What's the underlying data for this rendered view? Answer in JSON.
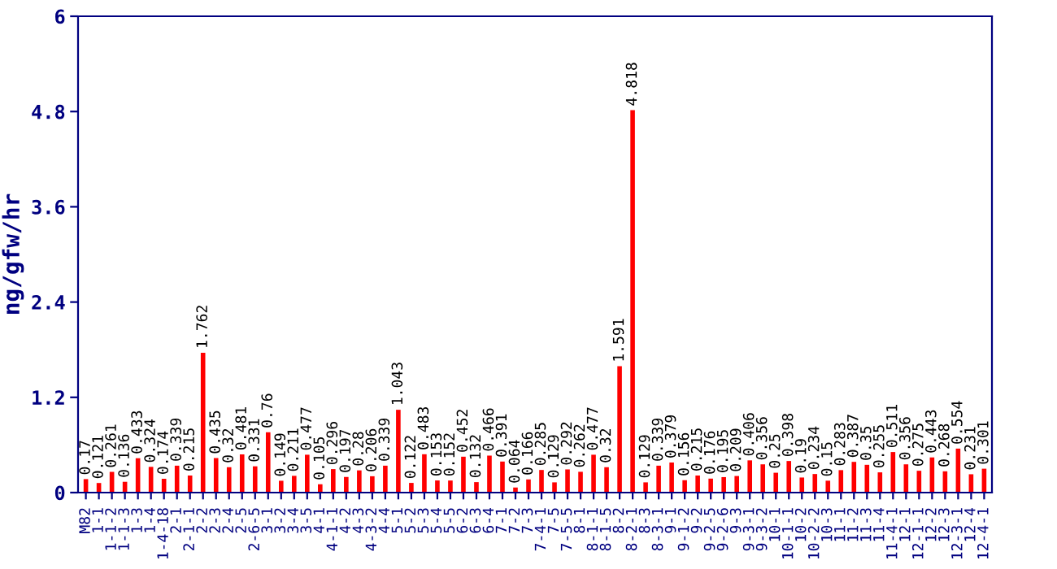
{
  "chart_data": {
    "type": "bar",
    "ylabel": "ng/gfw/hr",
    "categories": [
      "M82",
      "1-1",
      "1-1-2",
      "1-1-3",
      "1-3",
      "1-4",
      "1-4-18",
      "2-1",
      "2-1-1",
      "2-2",
      "2-3",
      "2-4",
      "2-5",
      "2-6-5",
      "3-1",
      "3-2",
      "3-4",
      "3-5",
      "4-1",
      "4-1-1",
      "4-2",
      "4-3",
      "4-3-2",
      "4-4",
      "5-1",
      "5-2",
      "5-3",
      "5-4",
      "5-5",
      "6-2",
      "6-3",
      "6-4",
      "7-1",
      "7-2",
      "7-3",
      "7-4-1",
      "7-5",
      "7-5-5",
      "8-1",
      "8-1-1",
      "8-1-5",
      "8-2",
      "8-2-1",
      "8-3",
      "8-3-1",
      "9-1",
      "9-1-2",
      "9-2",
      "9-2-5",
      "9-2-6",
      "9-3",
      "9-3-1",
      "9-3-2",
      "10-1",
      "10-1-1",
      "10-2",
      "10-2-2",
      "10-3",
      "11-1",
      "11-2",
      "11-3",
      "11-4",
      "11-4-1",
      "12-1",
      "12-1-1",
      "12-2",
      "12-3",
      "12-3-1",
      "12-4",
      "12-4-1"
    ],
    "values": [
      0.17,
      0.121,
      0.261,
      0.136,
      0.433,
      0.324,
      0.174,
      0.339,
      0.215,
      1.762,
      0.435,
      0.32,
      0.481,
      0.331,
      0.76,
      0.149,
      0.211,
      0.477,
      0.105,
      0.296,
      0.197,
      0.28,
      0.206,
      0.339,
      1.043,
      0.122,
      0.483,
      0.153,
      0.152,
      0.452,
      0.132,
      0.466,
      0.391,
      0.064,
      0.166,
      0.285,
      0.129,
      0.292,
      0.262,
      0.477,
      0.32,
      1.591,
      4.818,
      0.129,
      0.339,
      0.379,
      0.156,
      0.215,
      0.176,
      0.195,
      0.209,
      0.406,
      0.356,
      0.25,
      0.398,
      0.19,
      0.234,
      0.15,
      0.283,
      0.387,
      0.35,
      0.255,
      0.511,
      0.356,
      0.275,
      0.443,
      0.268,
      0.554,
      0.231,
      0.301
    ],
    "color": "#ff0000",
    "ylim": [
      0,
      6
    ],
    "yticks": [
      0,
      1.2,
      2.4,
      3.6,
      4.8,
      6
    ],
    "data_labels": true,
    "grid": false
  }
}
